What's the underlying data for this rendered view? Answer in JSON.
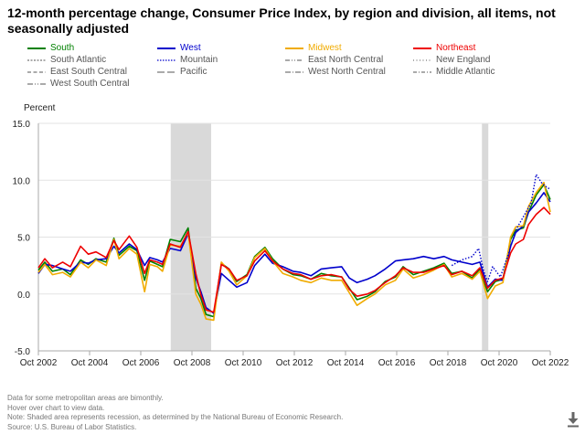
{
  "chart_data": {
    "type": "line",
    "title": "12-month percentage change, Consumer Price Index, by region and division, all items, not seasonally adjusted",
    "ylabel": "Percent",
    "xlabel": "",
    "ylim": [
      -5.0,
      15.0
    ],
    "yticks": [
      "15.0",
      "10.0",
      "5.0",
      "0.0",
      "-5.0"
    ],
    "ytick_values": [
      15,
      10,
      5,
      0,
      -5
    ],
    "xlim": [
      2002.75,
      2022.75
    ],
    "xticks": [
      "Oct 2002",
      "Oct 2004",
      "Oct 2006",
      "Oct 2008",
      "Oct 2010",
      "Oct 2012",
      "Oct 2014",
      "Oct 2016",
      "Oct 2018",
      "Oct 2020",
      "Oct 2022"
    ],
    "xtick_values": [
      2002.75,
      2004.75,
      2006.75,
      2008.75,
      2010.75,
      2012.75,
      2014.75,
      2016.75,
      2018.75,
      2020.75,
      2022.75
    ],
    "recessions": [
      [
        2007.92,
        2009.5
      ],
      [
        2020.08,
        2020.33
      ]
    ],
    "grid": true,
    "legend_position": "top",
    "series": [
      {
        "name": "South",
        "color": "#008000",
        "dash": "",
        "width": 1.6,
        "x": [
          2002.75,
          2003.0,
          2003.3,
          2003.7,
          2004.0,
          2004.4,
          2004.7,
          2005.0,
          2005.4,
          2005.7,
          2005.9,
          2006.3,
          2006.6,
          2006.9,
          2007.1,
          2007.4,
          2007.6,
          2007.9,
          2008.3,
          2008.6,
          2008.9,
          2009.1,
          2009.3,
          2009.6,
          2009.9,
          2010.2,
          2010.5,
          2010.9,
          2011.2,
          2011.6,
          2011.9,
          2012.3,
          2012.7,
          2013.0,
          2013.4,
          2013.8,
          2014.2,
          2014.6,
          2014.9,
          2015.2,
          2015.6,
          2015.9,
          2016.3,
          2016.7,
          2017.0,
          2017.4,
          2017.8,
          2018.2,
          2018.6,
          2018.9,
          2019.3,
          2019.7,
          2020.0,
          2020.3,
          2020.6,
          2020.9,
          2021.2,
          2021.4,
          2021.7,
          2021.9,
          2022.2,
          2022.5,
          2022.75
        ],
        "y": [
          2.1,
          2.8,
          2.0,
          2.2,
          1.7,
          3.0,
          2.6,
          3.1,
          2.8,
          4.9,
          3.4,
          4.2,
          3.8,
          1.2,
          2.9,
          2.6,
          2.4,
          4.8,
          4.6,
          5.8,
          0.5,
          -0.4,
          -1.8,
          -2.0,
          2.7,
          2.2,
          1.1,
          1.7,
          3.3,
          4.1,
          3.1,
          2.2,
          1.7,
          1.6,
          1.3,
          1.8,
          1.6,
          1.5,
          0.5,
          -0.5,
          -0.2,
          0.2,
          1.1,
          1.5,
          2.4,
          1.7,
          2.0,
          2.3,
          2.7,
          1.8,
          2.0,
          1.4,
          2.2,
          0.2,
          1.1,
          1.3,
          4.8,
          5.6,
          5.8,
          7.2,
          8.7,
          9.6,
          8.3
        ]
      },
      {
        "name": "West",
        "color": "#0000cc",
        "dash": "",
        "width": 1.6,
        "x": [
          2002.75,
          2003.0,
          2003.3,
          2003.7,
          2004.0,
          2004.4,
          2004.7,
          2005.0,
          2005.4,
          2005.7,
          2005.9,
          2006.3,
          2006.6,
          2006.9,
          2007.1,
          2007.4,
          2007.6,
          2007.9,
          2008.3,
          2008.6,
          2008.9,
          2009.1,
          2009.3,
          2009.6,
          2009.9,
          2010.2,
          2010.5,
          2010.9,
          2011.2,
          2011.6,
          2011.9,
          2012.3,
          2012.7,
          2013.0,
          2013.4,
          2013.8,
          2014.2,
          2014.6,
          2014.9,
          2015.2,
          2015.6,
          2015.9,
          2016.3,
          2016.7,
          2017.0,
          2017.4,
          2017.8,
          2018.2,
          2018.6,
          2018.9,
          2019.3,
          2019.7,
          2020.0,
          2020.3,
          2020.6,
          2020.9,
          2021.2,
          2021.4,
          2021.7,
          2021.9,
          2022.2,
          2022.5,
          2022.75
        ],
        "y": [
          1.8,
          2.6,
          2.5,
          2.2,
          2.0,
          2.8,
          2.7,
          3.0,
          3.1,
          4.2,
          3.6,
          4.4,
          3.9,
          2.5,
          3.2,
          3.0,
          2.8,
          4.0,
          3.8,
          5.3,
          1.4,
          0.2,
          -1.2,
          -1.7,
          1.8,
          1.2,
          0.6,
          1.0,
          2.5,
          3.5,
          2.7,
          2.4,
          2.0,
          1.9,
          1.6,
          2.2,
          2.3,
          2.4,
          1.4,
          1.0,
          1.3,
          1.6,
          2.2,
          2.9,
          3.0,
          3.1,
          3.3,
          3.1,
          3.3,
          3.0,
          2.8,
          2.6,
          2.8,
          0.6,
          1.3,
          1.2,
          4.2,
          5.4,
          6.0,
          7.2,
          8.0,
          8.9,
          8.1
        ]
      },
      {
        "name": "Midwest",
        "color": "#f0ab00",
        "dash": "",
        "width": 1.6,
        "x": [
          2002.75,
          2003.0,
          2003.3,
          2003.7,
          2004.0,
          2004.4,
          2004.7,
          2005.0,
          2005.4,
          2005.7,
          2005.9,
          2006.3,
          2006.6,
          2006.9,
          2007.1,
          2007.4,
          2007.6,
          2007.9,
          2008.3,
          2008.6,
          2008.9,
          2009.1,
          2009.3,
          2009.6,
          2009.9,
          2010.2,
          2010.5,
          2010.9,
          2011.2,
          2011.6,
          2011.9,
          2012.3,
          2012.7,
          2013.0,
          2013.4,
          2013.8,
          2014.2,
          2014.6,
          2014.9,
          2015.2,
          2015.6,
          2015.9,
          2016.3,
          2016.7,
          2017.0,
          2017.4,
          2017.8,
          2018.2,
          2018.6,
          2018.9,
          2019.3,
          2019.7,
          2020.0,
          2020.3,
          2020.6,
          2020.9,
          2021.2,
          2021.4,
          2021.7,
          2021.9,
          2022.2,
          2022.5,
          2022.75
        ],
        "y": [
          1.9,
          2.6,
          1.7,
          1.9,
          1.5,
          2.8,
          2.3,
          3.0,
          2.5,
          4.8,
          3.1,
          4.0,
          3.5,
          0.2,
          2.6,
          2.4,
          2.0,
          4.3,
          4.2,
          5.4,
          0.0,
          -0.9,
          -2.2,
          -2.3,
          2.8,
          2.0,
          0.8,
          1.6,
          3.2,
          4.0,
          2.9,
          1.8,
          1.5,
          1.2,
          1.0,
          1.4,
          1.2,
          1.2,
          0.1,
          -1.0,
          -0.4,
          0.0,
          0.8,
          1.2,
          2.2,
          1.4,
          1.7,
          2.1,
          2.6,
          1.5,
          1.8,
          1.3,
          2.0,
          -0.4,
          0.7,
          1.0,
          5.0,
          5.9,
          6.0,
          7.7,
          8.9,
          9.8,
          7.2
        ]
      },
      {
        "name": "Northeast",
        "color": "#ee0000",
        "dash": "",
        "width": 1.6,
        "x": [
          2002.75,
          2003.0,
          2003.3,
          2003.7,
          2004.0,
          2004.4,
          2004.7,
          2005.0,
          2005.4,
          2005.7,
          2005.9,
          2006.3,
          2006.6,
          2006.9,
          2007.1,
          2007.4,
          2007.6,
          2007.9,
          2008.3,
          2008.6,
          2008.9,
          2009.1,
          2009.3,
          2009.6,
          2009.9,
          2010.2,
          2010.5,
          2010.9,
          2011.2,
          2011.6,
          2011.9,
          2012.3,
          2012.7,
          2013.0,
          2013.4,
          2013.8,
          2014.2,
          2014.6,
          2014.9,
          2015.2,
          2015.6,
          2015.9,
          2016.3,
          2016.7,
          2017.0,
          2017.4,
          2017.8,
          2018.2,
          2018.6,
          2018.9,
          2019.3,
          2019.7,
          2020.0,
          2020.3,
          2020.6,
          2020.9,
          2021.2,
          2021.4,
          2021.7,
          2021.9,
          2022.2,
          2022.5,
          2022.75
        ],
        "y": [
          2.3,
          3.1,
          2.3,
          2.8,
          2.4,
          4.2,
          3.5,
          3.7,
          3.2,
          4.7,
          3.9,
          5.1,
          4.1,
          1.8,
          3.0,
          2.8,
          2.6,
          4.4,
          4.1,
          5.5,
          1.8,
          -0.1,
          -1.4,
          -1.6,
          2.6,
          2.2,
          1.2,
          1.6,
          2.9,
          3.8,
          2.9,
          2.2,
          1.8,
          1.7,
          1.3,
          1.6,
          1.7,
          1.5,
          0.4,
          -0.2,
          0.0,
          0.3,
          1.0,
          1.6,
          2.3,
          1.9,
          1.9,
          2.2,
          2.5,
          1.7,
          2.0,
          1.6,
          2.3,
          0.5,
          1.2,
          1.4,
          3.6,
          4.4,
          4.8,
          6.1,
          7.0,
          7.6,
          7.0
        ]
      },
      {
        "name": "Mountain",
        "color": "#0000cc",
        "dash": "1.5,1.8",
        "width": 1.4,
        "x": [
          2018.9,
          2019.3,
          2019.7,
          2019.95,
          2020.15,
          2020.3,
          2020.5,
          2020.8,
          2021.1,
          2021.4,
          2021.7,
          2022.0,
          2022.2,
          2022.4,
          2022.6,
          2022.75
        ],
        "y": [
          2.5,
          3.0,
          3.3,
          4.0,
          2.0,
          1.1,
          2.4,
          1.5,
          3.4,
          5.6,
          6.8,
          8.0,
          10.5,
          9.8,
          9.4,
          9.2
        ]
      }
    ],
    "legend": [
      {
        "name": "South",
        "color": "#008000",
        "dash": ""
      },
      {
        "name": "West",
        "color": "#0000cc",
        "dash": ""
      },
      {
        "name": "Midwest",
        "color": "#f0ab00",
        "dash": ""
      },
      {
        "name": "Northeast",
        "color": "#ee0000",
        "dash": ""
      },
      {
        "name": "South Atlantic",
        "color": "#777777",
        "dash": "2,1.5"
      },
      {
        "name": "Mountain",
        "color": "#0000cc",
        "dash": "1.5,1.5"
      },
      {
        "name": "East North Central",
        "color": "#777777",
        "dash": "5,2,1,2,1,2"
      },
      {
        "name": "New England",
        "color": "#777777",
        "dash": "1,2.5"
      },
      {
        "name": "East South Central",
        "color": "#777777",
        "dash": "4,2.5"
      },
      {
        "name": "Pacific",
        "color": "#777777",
        "dash": "8,3"
      },
      {
        "name": "West North Central",
        "color": "#777777",
        "dash": "6,2,1,2"
      },
      {
        "name": "Middle Atlantic",
        "color": "#777777",
        "dash": "4,2,1,2"
      },
      {
        "name": "West South Central",
        "color": "#777777",
        "dash": "6,2,1,2,1,2"
      }
    ]
  },
  "notes": [
    "Data for some metropolitan areas are bimonthly.",
    "Hover over chart to view data.",
    "Note: Shaded area represents recession, as determined by the National Bureau of Economic Research.",
    "Source: U.S. Bureau of Labor Statistics."
  ],
  "download_icon": "download-icon"
}
